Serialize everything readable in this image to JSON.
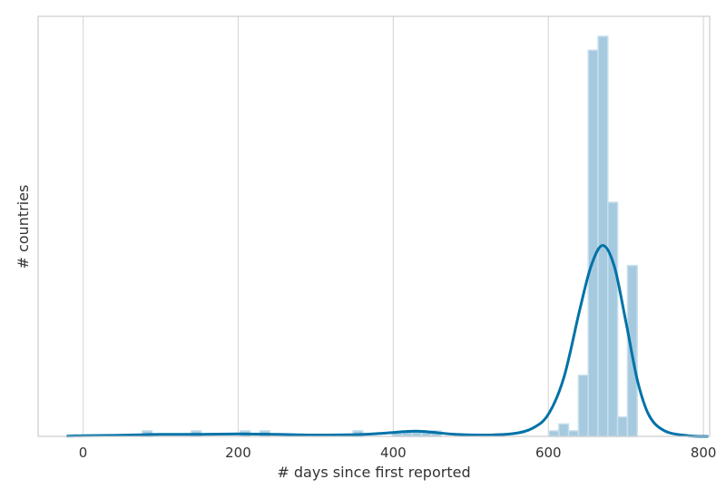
{
  "chart_data": {
    "type": "bar",
    "xlabel": "# days since first reported",
    "ylabel": "# countries",
    "xlim": [
      -58,
      808
    ],
    "ylim": [
      0,
      57.6
    ],
    "x_ticks": [
      0,
      200,
      400,
      600,
      800
    ],
    "y_ticks_shown": false,
    "grid": "vertical",
    "bin_width": 12.6,
    "histogram": [
      {
        "x": 76.4,
        "y": 0.8
      },
      {
        "x": 139.6,
        "y": 0.8
      },
      {
        "x": 202.8,
        "y": 0.8
      },
      {
        "x": 228.0,
        "y": 0.8
      },
      {
        "x": 348.1,
        "y": 0.8
      },
      {
        "x": 398.6,
        "y": 0.5
      },
      {
        "x": 411.3,
        "y": 0.8
      },
      {
        "x": 423.9,
        "y": 0.8
      },
      {
        "x": 436.6,
        "y": 0.8
      },
      {
        "x": 449.2,
        "y": 0.8
      },
      {
        "x": 600.8,
        "y": 0.8
      },
      {
        "x": 613.5,
        "y": 1.8
      },
      {
        "x": 626.1,
        "y": 0.8
      },
      {
        "x": 638.8,
        "y": 8.8
      },
      {
        "x": 651.4,
        "y": 55.6
      },
      {
        "x": 664.1,
        "y": 57.6
      },
      {
        "x": 676.7,
        "y": 33.7
      },
      {
        "x": 689.3,
        "y": 2.8
      },
      {
        "x": 702.0,
        "y": 24.6
      }
    ],
    "kde": {
      "x": [
        -20,
        0,
        40,
        80,
        100,
        150,
        200,
        250,
        300,
        350,
        380,
        410,
        430,
        450,
        480,
        520,
        555,
        580,
        600,
        620,
        640,
        655,
        670,
        685,
        700,
        715,
        730,
        750,
        780,
        805
      ],
      "y": [
        0.05,
        0.1,
        0.15,
        0.25,
        0.3,
        0.3,
        0.35,
        0.3,
        0.2,
        0.25,
        0.4,
        0.65,
        0.75,
        0.6,
        0.3,
        0.2,
        0.4,
        1.2,
        3.2,
        8.5,
        18.0,
        24.5,
        27.5,
        24.5,
        16.5,
        8.0,
        3.0,
        0.8,
        0.1,
        0.0
      ]
    },
    "colors": {
      "bar_fill": "#a5cadf",
      "bar_edge": "#c8dfec",
      "kde_line": "#0072a8",
      "grid": "#d9d9d9",
      "frame": "#cccccc",
      "text": "#333333"
    }
  }
}
